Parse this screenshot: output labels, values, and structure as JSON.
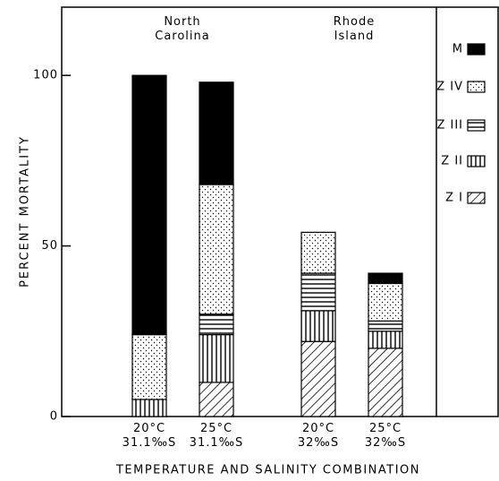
{
  "chart_data": {
    "type": "stacked_bar",
    "ylabel": "PERCENT   MORTALITY",
    "xlabel": "TEMPERATURE AND SALINITY COMBINATION",
    "annotations": [
      "North\nCarolina",
      "Rhode\nIsland"
    ],
    "categories": [
      "20°C\n31.1‰S",
      "25°C\n31.1‰S",
      "20°C\n32‰S",
      "25°C\n32‰S"
    ],
    "series": [
      {
        "name": "Z I",
        "color": "#000000",
        "pattern": "diagonal",
        "values": [
          0,
          10,
          22,
          20
        ]
      },
      {
        "name": "Z II",
        "color": "#000000",
        "pattern": "vertical",
        "values": [
          5,
          14,
          9,
          5
        ]
      },
      {
        "name": "Z III",
        "color": "#000000",
        "pattern": "horizontal",
        "values": [
          0,
          6,
          11,
          3
        ]
      },
      {
        "name": "Z IV",
        "color": "#000000",
        "pattern": "dots",
        "values": [
          19,
          38,
          12,
          11
        ]
      },
      {
        "name": "M",
        "color": "#000000",
        "pattern": "solid",
        "values": [
          76,
          30,
          0,
          3
        ]
      }
    ],
    "ylim": [
      0,
      120
    ],
    "yticks": [
      0,
      50,
      100
    ]
  }
}
